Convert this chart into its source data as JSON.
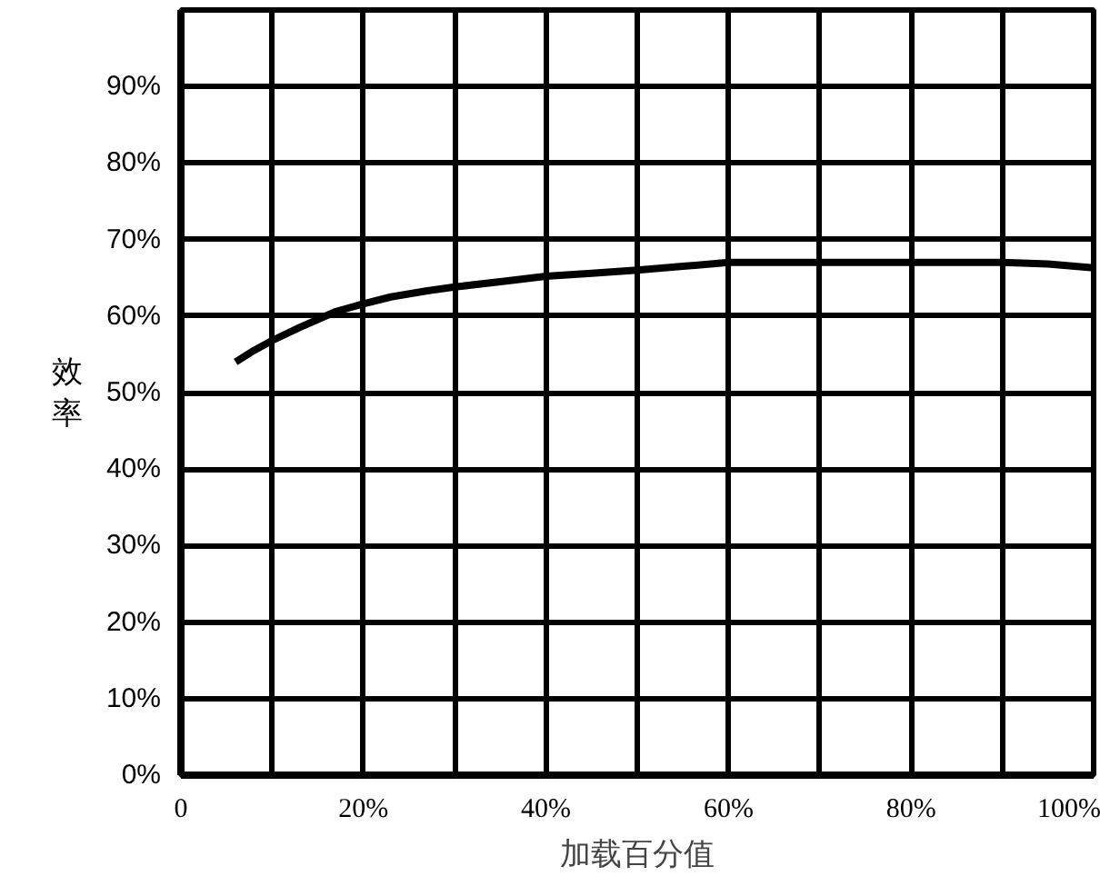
{
  "chart_data": {
    "type": "line",
    "xlabel": "加载百分值",
    "ylabel": "效率",
    "x": [
      6,
      8,
      10,
      13,
      17,
      20,
      23,
      27,
      30,
      35,
      40,
      45,
      50,
      55,
      60,
      70,
      80,
      90,
      95,
      100
    ],
    "series": [
      {
        "color": "#000000",
        "values": [
          54,
          55.5,
          56.8,
          58.5,
          60.6,
          61.6,
          62.5,
          63.3,
          63.8,
          64.5,
          65.2,
          65.6,
          66,
          66.5,
          67,
          67,
          67,
          67,
          66.8,
          66.3
        ]
      }
    ],
    "xlim": [
      0,
      100
    ],
    "xticks": [
      {
        "value": 0,
        "label": "0"
      },
      {
        "value": 10,
        "label": null
      },
      {
        "value": 20,
        "label": "20%"
      },
      {
        "value": 30,
        "label": null
      },
      {
        "value": 40,
        "label": "40%"
      },
      {
        "value": 50,
        "label": null
      },
      {
        "value": 60,
        "label": "60%"
      },
      {
        "value": 70,
        "label": null
      },
      {
        "value": 80,
        "label": "80%"
      },
      {
        "value": 90,
        "label": null
      },
      {
        "value": 100,
        "label": "100%"
      }
    ],
    "ylim": [
      0,
      100
    ],
    "yticks": [
      {
        "value": 0,
        "label": "0%"
      },
      {
        "value": 10,
        "label": "10%"
      },
      {
        "value": 20,
        "label": "20%"
      },
      {
        "value": 30,
        "label": "30%"
      },
      {
        "value": 40,
        "label": "40%"
      },
      {
        "value": 50,
        "label": "50%"
      },
      {
        "value": 60,
        "label": "60%"
      },
      {
        "value": 70,
        "label": "70%"
      },
      {
        "value": 80,
        "label": "80%"
      },
      {
        "value": 90,
        "label": "90%"
      },
      {
        "value": 100,
        "label": null
      }
    ],
    "grid": true,
    "line_style": "solid"
  }
}
